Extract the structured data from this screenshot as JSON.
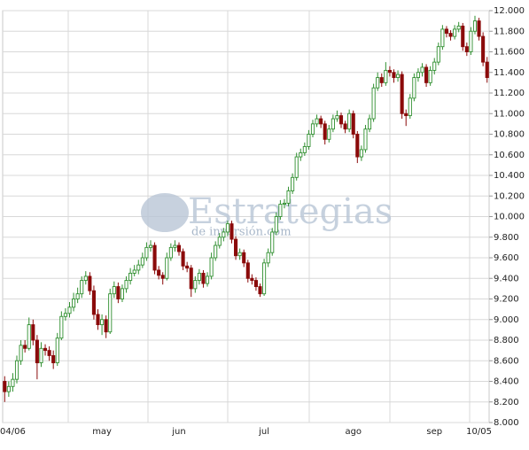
{
  "chart_data": {
    "type": "candlestick",
    "watermark": {
      "title": "Estrategias",
      "subtitle": "de inversión.com"
    },
    "up_color": "#2f8f2f",
    "down_color": "#8b0a0a",
    "grid": true,
    "ylim": [
      8000,
      12000
    ],
    "yticks": [
      {
        "value": 8000,
        "label": "8.000"
      },
      {
        "value": 8200,
        "label": "8.200"
      },
      {
        "value": 8400,
        "label": "8.400"
      },
      {
        "value": 8600,
        "label": "8.600"
      },
      {
        "value": 8800,
        "label": "8.800"
      },
      {
        "value": 9000,
        "label": "9.000"
      },
      {
        "value": 9200,
        "label": "9.200"
      },
      {
        "value": 9400,
        "label": "9.400"
      },
      {
        "value": 9600,
        "label": "9.600"
      },
      {
        "value": 9800,
        "label": "9.800"
      },
      {
        "value": 10000,
        "label": "10.000"
      },
      {
        "value": 10200,
        "label": "10.200"
      },
      {
        "value": 10400,
        "label": "10.400"
      },
      {
        "value": 10600,
        "label": "10.600"
      },
      {
        "value": 10800,
        "label": "10.800"
      },
      {
        "value": 11000,
        "label": "11.000"
      },
      {
        "value": 11200,
        "label": "11.200"
      },
      {
        "value": 11400,
        "label": "11.400"
      },
      {
        "value": 11600,
        "label": "11.600"
      },
      {
        "value": 11800,
        "label": "11.800"
      },
      {
        "value": 12000,
        "label": "12.000"
      }
    ],
    "categories": [
      null,
      null,
      "04/06",
      null,
      null,
      null,
      null,
      null,
      null,
      null,
      null,
      null,
      null,
      null,
      null,
      null,
      null,
      null,
      null,
      null,
      null,
      null,
      null,
      null,
      "may",
      null,
      null,
      null,
      null,
      null,
      null,
      null,
      null,
      null,
      null,
      null,
      null,
      null,
      null,
      null,
      null,
      null,
      null,
      "jun",
      null,
      null,
      null,
      null,
      null,
      null,
      null,
      null,
      null,
      null,
      null,
      null,
      null,
      null,
      null,
      null,
      null,
      null,
      null,
      null,
      "jul",
      null,
      null,
      null,
      null,
      null,
      null,
      null,
      null,
      null,
      null,
      null,
      null,
      null,
      null,
      null,
      null,
      null,
      null,
      null,
      null,
      null,
      "ago",
      null,
      null,
      null,
      null,
      null,
      null,
      null,
      null,
      null,
      null,
      null,
      null,
      null,
      null,
      null,
      null,
      null,
      null,
      null,
      "sep",
      null,
      null,
      null,
      null,
      null,
      null,
      null,
      null,
      null,
      null,
      "10/05",
      null,
      null
    ],
    "ohlc": [
      [
        8400,
        8450,
        8200,
        8300
      ],
      [
        8300,
        8400,
        8250,
        8350
      ],
      [
        8350,
        8480,
        8300,
        8420
      ],
      [
        8420,
        8650,
        8380,
        8600
      ],
      [
        8600,
        8800,
        8560,
        8750
      ],
      [
        8750,
        8800,
        8680,
        8720
      ],
      [
        8720,
        9020,
        8700,
        8950
      ],
      [
        8950,
        9000,
        8750,
        8800
      ],
      [
        8800,
        8850,
        8420,
        8580
      ],
      [
        8580,
        8780,
        8540,
        8720
      ],
      [
        8720,
        8760,
        8650,
        8700
      ],
      [
        8700,
        8740,
        8600,
        8650
      ],
      [
        8650,
        8700,
        8520,
        8580
      ],
      [
        8580,
        8870,
        8550,
        8820
      ],
      [
        8820,
        9080,
        8800,
        9030
      ],
      [
        9030,
        9110,
        8990,
        9060
      ],
      [
        9060,
        9170,
        9020,
        9120
      ],
      [
        9120,
        9260,
        9080,
        9200
      ],
      [
        9200,
        9310,
        9160,
        9250
      ],
      [
        9250,
        9420,
        9210,
        9380
      ],
      [
        9380,
        9470,
        9340,
        9420
      ],
      [
        9420,
        9460,
        9240,
        9280
      ],
      [
        9280,
        9330,
        9000,
        9050
      ],
      [
        9050,
        9100,
        8900,
        8950
      ],
      [
        8950,
        9050,
        8850,
        9000
      ],
      [
        9000,
        9040,
        8820,
        8880
      ],
      [
        8880,
        9300,
        8860,
        9250
      ],
      [
        9250,
        9370,
        9210,
        9320
      ],
      [
        9320,
        9360,
        9160,
        9200
      ],
      [
        9200,
        9340,
        9170,
        9300
      ],
      [
        9300,
        9420,
        9260,
        9380
      ],
      [
        9380,
        9500,
        9340,
        9450
      ],
      [
        9450,
        9530,
        9420,
        9480
      ],
      [
        9480,
        9580,
        9440,
        9530
      ],
      [
        9530,
        9650,
        9500,
        9600
      ],
      [
        9600,
        9750,
        9570,
        9700
      ],
      [
        9700,
        9770,
        9660,
        9720
      ],
      [
        9720,
        9750,
        9440,
        9480
      ],
      [
        9480,
        9520,
        9390,
        9430
      ],
      [
        9430,
        9460,
        9340,
        9400
      ],
      [
        9400,
        9650,
        9380,
        9600
      ],
      [
        9600,
        9740,
        9570,
        9700
      ],
      [
        9700,
        9770,
        9660,
        9720
      ],
      [
        9720,
        9750,
        9620,
        9660
      ],
      [
        9660,
        9690,
        9480,
        9520
      ],
      [
        9520,
        9560,
        9460,
        9500
      ],
      [
        9500,
        9530,
        9220,
        9300
      ],
      [
        9300,
        9420,
        9260,
        9380
      ],
      [
        9380,
        9490,
        9340,
        9450
      ],
      [
        9450,
        9480,
        9310,
        9350
      ],
      [
        9350,
        9460,
        9320,
        9420
      ],
      [
        9420,
        9650,
        9390,
        9600
      ],
      [
        9600,
        9760,
        9570,
        9720
      ],
      [
        9720,
        9840,
        9690,
        9800
      ],
      [
        9800,
        9890,
        9760,
        9850
      ],
      [
        9850,
        9960,
        9810,
        9930
      ],
      [
        9930,
        9960,
        9740,
        9780
      ],
      [
        9780,
        9810,
        9580,
        9620
      ],
      [
        9620,
        9690,
        9580,
        9650
      ],
      [
        9650,
        9680,
        9510,
        9550
      ],
      [
        9550,
        9580,
        9360,
        9400
      ],
      [
        9400,
        9440,
        9340,
        9380
      ],
      [
        9380,
        9410,
        9280,
        9320
      ],
      [
        9320,
        9350,
        9220,
        9250
      ],
      [
        9250,
        9590,
        9230,
        9550
      ],
      [
        9550,
        9690,
        9510,
        9650
      ],
      [
        9650,
        9890,
        9620,
        9850
      ],
      [
        9850,
        10040,
        9820,
        10000
      ],
      [
        10000,
        10160,
        9970,
        10120
      ],
      [
        10120,
        10170,
        10080,
        10130
      ],
      [
        10130,
        10290,
        10100,
        10250
      ],
      [
        10250,
        10420,
        10220,
        10380
      ],
      [
        10380,
        10620,
        10350,
        10580
      ],
      [
        10580,
        10660,
        10540,
        10620
      ],
      [
        10620,
        10720,
        10590,
        10680
      ],
      [
        10680,
        10840,
        10650,
        10800
      ],
      [
        10800,
        10940,
        10770,
        10900
      ],
      [
        10900,
        10990,
        10870,
        10950
      ],
      [
        10950,
        10980,
        10860,
        10900
      ],
      [
        10900,
        10930,
        10700,
        10750
      ],
      [
        10750,
        10890,
        10720,
        10850
      ],
      [
        10850,
        10990,
        10820,
        10950
      ],
      [
        10950,
        11030,
        10920,
        10980
      ],
      [
        10980,
        11010,
        10860,
        10900
      ],
      [
        10900,
        10930,
        10810,
        10850
      ],
      [
        10850,
        11040,
        10820,
        11000
      ],
      [
        11000,
        11030,
        10760,
        10800
      ],
      [
        10800,
        10830,
        10520,
        10580
      ],
      [
        10580,
        10690,
        10540,
        10650
      ],
      [
        10650,
        10890,
        10620,
        10850
      ],
      [
        10850,
        10990,
        10820,
        10950
      ],
      [
        10950,
        11290,
        10920,
        11250
      ],
      [
        11250,
        11400,
        11220,
        11350
      ],
      [
        11350,
        11390,
        11260,
        11300
      ],
      [
        11300,
        11500,
        11270,
        11420
      ],
      [
        11420,
        11460,
        11360,
        11400
      ],
      [
        11400,
        11430,
        11300,
        11350
      ],
      [
        11350,
        11420,
        11310,
        11380
      ],
      [
        11380,
        11410,
        10950,
        11000
      ],
      [
        11000,
        11040,
        10880,
        10980
      ],
      [
        10980,
        11190,
        10950,
        11150
      ],
      [
        11150,
        11390,
        11120,
        11350
      ],
      [
        11350,
        11440,
        11310,
        11400
      ],
      [
        11400,
        11490,
        11360,
        11450
      ],
      [
        11450,
        11480,
        11260,
        11300
      ],
      [
        11300,
        11460,
        11270,
        11420
      ],
      [
        11420,
        11540,
        11380,
        11500
      ],
      [
        11500,
        11690,
        11470,
        11650
      ],
      [
        11650,
        11860,
        11620,
        11820
      ],
      [
        11820,
        11850,
        11740,
        11780
      ],
      [
        11780,
        11810,
        11710,
        11750
      ],
      [
        11750,
        11860,
        11720,
        11820
      ],
      [
        11820,
        11890,
        11790,
        11850
      ],
      [
        11850,
        11880,
        11610,
        11650
      ],
      [
        11650,
        11690,
        11560,
        11600
      ],
      [
        11600,
        11840,
        11570,
        11800
      ],
      [
        11800,
        11950,
        11770,
        11900
      ],
      [
        11900,
        11930,
        11710,
        11750
      ],
      [
        11750,
        11790,
        11460,
        11500
      ],
      [
        11500,
        11550,
        11300,
        11350
      ]
    ]
  }
}
